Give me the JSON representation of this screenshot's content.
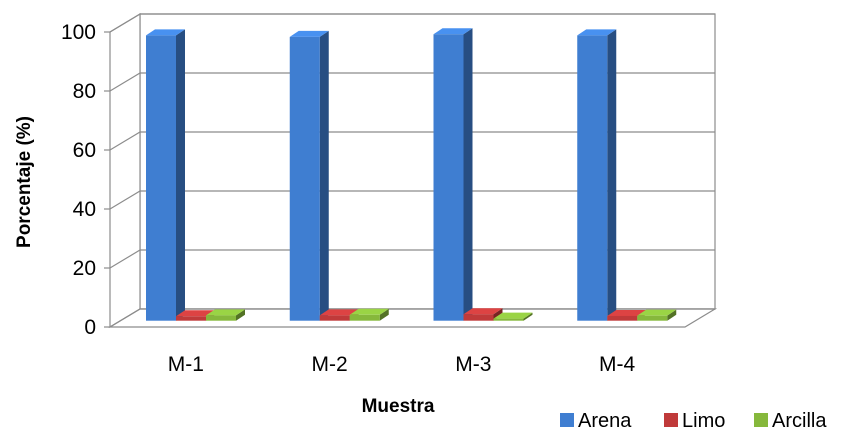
{
  "chart_data": {
    "type": "bar",
    "style": "3d-clustered-column",
    "categories": [
      "M-1",
      "M-2",
      "M-3",
      "M-4"
    ],
    "series": [
      {
        "name": "Arena",
        "values": [
          96.7,
          96.2,
          97.1,
          96.7
        ],
        "color": "#3f7ed1"
      },
      {
        "name": "Limo",
        "values": [
          1.5,
          1.8,
          2.2,
          1.6
        ],
        "color": "#c03a3a"
      },
      {
        "name": "Arcilla",
        "values": [
          1.8,
          2.0,
          0.7,
          1.7
        ],
        "color": "#86b83c"
      }
    ],
    "title": "",
    "xlabel": "Muestra",
    "ylabel": "Porcentaje (%)",
    "ylim": [
      0,
      100
    ],
    "yticks": [
      0,
      20,
      40,
      60,
      80,
      100
    ],
    "grid": true,
    "legend": "bottom-right"
  }
}
